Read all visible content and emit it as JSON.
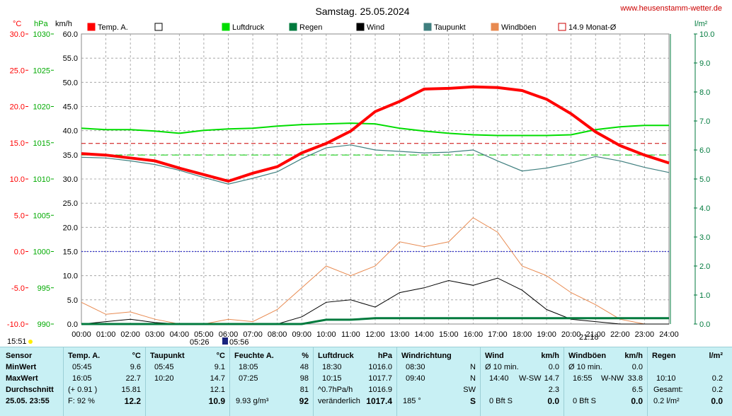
{
  "title": "Samstag. 25.05.2024",
  "site": "www.heusenstamm-wetter.de",
  "units": {
    "temp": "°C",
    "press": "hPa",
    "speed": "km/h",
    "rain": "l/m²"
  },
  "legend": [
    {
      "label": "Temp. A.",
      "color": "#ff0000"
    },
    {
      "label": "",
      "color": "#ffffff"
    },
    {
      "label": "Luftdruck",
      "color": "#00dd00"
    },
    {
      "label": "Regen",
      "color": "#007a3d"
    },
    {
      "label": "Wind",
      "color": "#000000"
    },
    {
      "label": "Taupunkt",
      "color": "#3f7f7f"
    },
    {
      "label": "Windböen",
      "color": "#e88a50"
    },
    {
      "label": "14.9 Monat-Ø",
      "color": "#cc0000"
    }
  ],
  "axis_labels": {
    "temp": [
      "30.0",
      "25.0",
      "20.0",
      "15.0",
      "10.0",
      "5.0",
      "0.0",
      "-5.0",
      "-10.0"
    ],
    "press": [
      "1030",
      "1025",
      "1020",
      "1015",
      "1010",
      "1005",
      "1000",
      "995",
      "990"
    ],
    "speed": [
      "60.0",
      "55.0",
      "50.0",
      "45.0",
      "40.0",
      "35.0",
      "30.0",
      "25.0",
      "20.0",
      "15.0",
      "10.0",
      "5.0",
      "0.0"
    ],
    "rain": [
      "10.0",
      "9.0",
      "8.0",
      "7.0",
      "6.0",
      "5.0",
      "4.0",
      "3.0",
      "2.0",
      "1.0",
      "0.0"
    ],
    "time": [
      "00:00",
      "01:00",
      "02:00",
      "03:00",
      "04:00",
      "05:00",
      "06:00",
      "07:00",
      "08:00",
      "09:00",
      "10:00",
      "11:00",
      "12:00",
      "13:00",
      "14:00",
      "15:00",
      "16:00",
      "17:00",
      "18:00",
      "19:00",
      "20:00",
      "21:00",
      "22:00",
      "23:00",
      "24:00"
    ]
  },
  "sun": {
    "daylength": "15:51",
    "sunrise": "05:26",
    "moon": "05:56",
    "sunset": "21:18"
  },
  "chart_data": {
    "type": "line",
    "x_label": "time",
    "x": [
      "00:00",
      "01:00",
      "02:00",
      "03:00",
      "04:00",
      "05:00",
      "06:00",
      "07:00",
      "08:00",
      "09:00",
      "10:00",
      "11:00",
      "12:00",
      "13:00",
      "14:00",
      "15:00",
      "16:00",
      "17:00",
      "18:00",
      "19:00",
      "20:00",
      "21:00",
      "22:00",
      "23:00",
      "24:00"
    ],
    "month_avg_temp": 14.9,
    "series": [
      {
        "name": "Temp. A.",
        "axis": "°C",
        "values": [
          13.5,
          13.3,
          12.9,
          12.5,
          11.5,
          10.6,
          9.7,
          10.8,
          11.7,
          13.6,
          14.9,
          16.6,
          19.3,
          20.7,
          22.4,
          22.5,
          22.7,
          22.6,
          22.2,
          21.0,
          19.0,
          16.5,
          14.6,
          13.3,
          12.2
        ]
      },
      {
        "name": "Taupunkt",
        "axis": "°C",
        "values": [
          13.0,
          12.9,
          12.5,
          12.0,
          11.2,
          10.2,
          9.3,
          10.1,
          11.0,
          12.8,
          14.3,
          14.7,
          14.0,
          13.8,
          13.6,
          13.7,
          14.0,
          12.5,
          11.1,
          11.5,
          12.2,
          13.1,
          12.5,
          11.6,
          10.9
        ]
      },
      {
        "name": "Luftdruck",
        "axis": "hPa",
        "values": [
          1017.0,
          1016.8,
          1016.8,
          1016.6,
          1016.3,
          1016.7,
          1016.9,
          1017.0,
          1017.3,
          1017.5,
          1017.6,
          1017.7,
          1017.6,
          1017.0,
          1016.6,
          1016.3,
          1016.1,
          1016.0,
          1016.0,
          1016.0,
          1016.1,
          1016.8,
          1017.2,
          1017.4,
          1017.4
        ]
      },
      {
        "name": "Wind",
        "axis": "km/h",
        "values": [
          0.0,
          0.5,
          1.0,
          0.3,
          0.0,
          0.0,
          0.0,
          0.0,
          0.0,
          1.5,
          4.5,
          5.0,
          3.5,
          6.5,
          7.5,
          9.0,
          8.0,
          9.5,
          7.0,
          3.0,
          1.0,
          0.5,
          0.0,
          0.0,
          0.0
        ]
      },
      {
        "name": "Windböen",
        "axis": "km/h",
        "values": [
          4.5,
          2.0,
          2.5,
          1.0,
          0.0,
          0.0,
          1.0,
          0.5,
          3.0,
          7.5,
          12.0,
          10.0,
          12.0,
          17.0,
          16.0,
          17.0,
          22.0,
          19.0,
          12.0,
          10.0,
          6.5,
          4.0,
          1.0,
          0.0,
          0.0
        ]
      },
      {
        "name": "Regen",
        "axis": "l/m²",
        "values": [
          0.0,
          0.0,
          0.0,
          0.0,
          0.0,
          0.0,
          0.0,
          0.0,
          0.0,
          0.0,
          0.15,
          0.15,
          0.2,
          0.2,
          0.2,
          0.2,
          0.2,
          0.2,
          0.2,
          0.2,
          0.2,
          0.2,
          0.2,
          0.2,
          0.2
        ]
      }
    ]
  },
  "panel": {
    "sensor": {
      "head": "Sensor",
      "rows": [
        "MinWert",
        "MaxWert",
        "Durchschnitt"
      ],
      "stamp": "25.05. 23:55"
    },
    "temp": {
      "head": "Temp. A.",
      "unit": "°C",
      "min_t": "05:45",
      "min_v": "9.6",
      "max_t": "16:05",
      "max_v": "22.7",
      "avg_note": "(+ 0.91 )",
      "avg_v": "15.81",
      "cur_note": "F: 92 %",
      "cur_v": "12.2"
    },
    "dew": {
      "head": "Taupunkt",
      "unit": "°C",
      "min_t": "05:45",
      "min_v": "9.1",
      "max_t": "10:20",
      "max_v": "14.7",
      "avg_v": "12.1",
      "cur_v": "10.9"
    },
    "hum": {
      "head": "Feuchte A.",
      "unit": "%",
      "min_t": "18:05",
      "min_v": "48",
      "max_t": "07:25",
      "max_v": "98",
      "avg_v": "81",
      "cur_note": "9.93 g/m³",
      "cur_v": "92"
    },
    "press": {
      "head": "Luftdruck",
      "unit": "hPa",
      "min_t": "18:30",
      "min_v": "1016.0",
      "max_t": "10:15",
      "max_v": "1017.7",
      "avg_note": "^0.7hPa/h",
      "avg_v": "1016.9",
      "cur_note": "veränderlich",
      "cur_v": "1017.4"
    },
    "wdir": {
      "head": "Windrichtung",
      "min_t": "08:30",
      "min_v": "N",
      "max_t": "09:40",
      "max_v": "N",
      "avg_v": "SW",
      "cur_note": "185 °",
      "cur_v": "S"
    },
    "wind": {
      "head": "Wind",
      "unit": "km/h",
      "min_t": "Ø 10 min.",
      "min_v": "0.0",
      "max_t": "14:40",
      "max_m": "W-SW",
      "max_v": "14.7",
      "avg_v": "2.3",
      "cur_note": "0 Bft S",
      "cur_v": "0.0"
    },
    "gust": {
      "head": "Windböen",
      "unit": "km/h",
      "min_t": "Ø 10 min.",
      "min_v": "0.0",
      "max_t": "16:55",
      "max_m": "W-NW",
      "max_v": "33.8",
      "avg_v": "6.5",
      "cur_note": "0 Bft S",
      "cur_v": "0.0"
    },
    "rain": {
      "head": "Regen",
      "unit": "l/m²",
      "max_t": "10:10",
      "max_v": "0.2",
      "avg_note": "Gesamt:",
      "avg_v": "0.2",
      "cur_note": "0.2 l/m²",
      "cur_v": "0.0"
    }
  }
}
